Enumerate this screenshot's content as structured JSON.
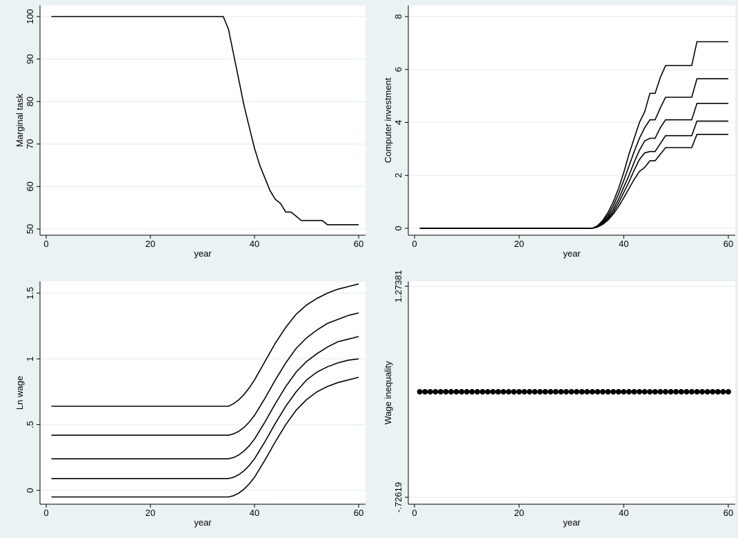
{
  "chart_data": [
    {
      "type": "line",
      "xlabel": "year",
      "ylabel": "Marginal task",
      "xlim": [
        0,
        60
      ],
      "ylim": [
        50,
        100
      ],
      "xticks": [
        0,
        20,
        40,
        60
      ],
      "yticks": [
        50,
        60,
        70,
        80,
        90,
        100
      ],
      "grid": true,
      "series": [
        {
          "x": [
            1,
            34,
            35,
            36,
            37,
            38,
            39,
            40,
            41,
            42,
            43,
            44,
            45,
            46,
            47,
            48,
            49,
            50,
            51,
            52,
            53,
            54,
            55,
            56,
            57,
            58,
            59,
            60
          ],
          "values": [
            100,
            100,
            97,
            91,
            85,
            79,
            74,
            69,
            65,
            62,
            59,
            57,
            56,
            54,
            54,
            53,
            52,
            52,
            52,
            52,
            52,
            51,
            51,
            51,
            51,
            51,
            51,
            51
          ]
        }
      ]
    },
    {
      "type": "line",
      "xlabel": "year",
      "ylabel": "Computer investment",
      "xlim": [
        0,
        60
      ],
      "ylim": [
        0,
        8
      ],
      "xticks": [
        0,
        20,
        40,
        60
      ],
      "yticks": [
        0,
        2,
        4,
        6,
        8
      ],
      "grid": true,
      "series": [
        {
          "x": [
            1,
            34,
            35,
            36,
            37,
            38,
            39,
            40,
            41,
            42,
            43,
            44,
            45,
            46,
            47,
            48,
            49,
            50,
            51,
            52,
            53,
            54,
            55,
            56,
            57,
            58,
            59,
            60
          ],
          "values": [
            0,
            0,
            0.1,
            0.3,
            0.6,
            1.0,
            1.5,
            2.1,
            2.8,
            3.4,
            4.0,
            4.4,
            5.1,
            5.1,
            5.7,
            6.15,
            6.15,
            6.15,
            6.15,
            6.15,
            6.15,
            7.05,
            7.05,
            7.05,
            7.05,
            7.05,
            7.05,
            7.05
          ]
        },
        {
          "x": [
            1,
            34,
            35,
            36,
            37,
            38,
            39,
            40,
            41,
            42,
            43,
            44,
            45,
            46,
            47,
            48,
            49,
            50,
            51,
            52,
            53,
            54,
            55,
            56,
            57,
            58,
            59,
            60
          ],
          "values": [
            0,
            0,
            0.08,
            0.25,
            0.5,
            0.85,
            1.3,
            1.8,
            2.35,
            2.9,
            3.4,
            3.8,
            4.1,
            4.1,
            4.55,
            4.95,
            4.95,
            4.95,
            4.95,
            4.95,
            4.95,
            5.65,
            5.65,
            5.65,
            5.65,
            5.65,
            5.65,
            5.65
          ]
        },
        {
          "x": [
            1,
            34,
            35,
            36,
            37,
            38,
            39,
            40,
            41,
            42,
            43,
            44,
            45,
            46,
            47,
            48,
            49,
            50,
            51,
            52,
            53,
            54,
            55,
            56,
            57,
            58,
            59,
            60
          ],
          "values": [
            0,
            0,
            0.07,
            0.2,
            0.42,
            0.72,
            1.1,
            1.55,
            2.0,
            2.5,
            2.95,
            3.3,
            3.4,
            3.4,
            3.8,
            4.1,
            4.1,
            4.1,
            4.1,
            4.1,
            4.1,
            4.72,
            4.72,
            4.72,
            4.72,
            4.72,
            4.72,
            4.72
          ]
        },
        {
          "x": [
            1,
            34,
            35,
            36,
            37,
            38,
            39,
            40,
            41,
            42,
            43,
            44,
            45,
            46,
            47,
            48,
            49,
            50,
            51,
            52,
            53,
            54,
            55,
            56,
            57,
            58,
            59,
            60
          ],
          "values": [
            0,
            0,
            0.06,
            0.18,
            0.36,
            0.62,
            0.95,
            1.35,
            1.75,
            2.2,
            2.6,
            2.85,
            2.9,
            2.9,
            3.2,
            3.5,
            3.5,
            3.5,
            3.5,
            3.5,
            3.5,
            4.05,
            4.05,
            4.05,
            4.05,
            4.05,
            4.05,
            4.05
          ]
        },
        {
          "x": [
            1,
            34,
            35,
            36,
            37,
            38,
            39,
            40,
            41,
            42,
            43,
            44,
            45,
            46,
            47,
            48,
            49,
            50,
            51,
            52,
            53,
            54,
            55,
            56,
            57,
            58,
            59,
            60
          ],
          "values": [
            0,
            0,
            0.05,
            0.15,
            0.31,
            0.54,
            0.82,
            1.15,
            1.5,
            1.85,
            2.15,
            2.3,
            2.55,
            2.55,
            2.8,
            3.05,
            3.05,
            3.05,
            3.05,
            3.05,
            3.05,
            3.55,
            3.55,
            3.55,
            3.55,
            3.55,
            3.55,
            3.55
          ]
        }
      ]
    },
    {
      "type": "line",
      "xlabel": "year",
      "ylabel": "Ln wage",
      "xlim": [
        0,
        60
      ],
      "ylim": [
        0,
        1.5
      ],
      "xticks": [
        0,
        20,
        40,
        60
      ],
      "yticks": [
        0,
        0.5,
        1,
        1.5
      ],
      "ytick_labels": [
        "0",
        ".5",
        "1",
        "1.5"
      ],
      "grid": true,
      "series": [
        {
          "x": [
            1,
            34,
            35,
            36,
            37,
            38,
            39,
            40,
            42,
            44,
            46,
            48,
            50,
            52,
            54,
            56,
            58,
            60
          ],
          "values": [
            0.64,
            0.64,
            0.64,
            0.66,
            0.69,
            0.73,
            0.78,
            0.84,
            0.98,
            1.12,
            1.24,
            1.34,
            1.41,
            1.46,
            1.5,
            1.53,
            1.55,
            1.57
          ]
        },
        {
          "x": [
            1,
            35,
            36,
            37,
            38,
            39,
            40,
            42,
            44,
            46,
            48,
            50,
            52,
            54,
            56,
            58,
            60
          ],
          "values": [
            0.42,
            0.42,
            0.43,
            0.45,
            0.48,
            0.52,
            0.57,
            0.7,
            0.84,
            0.97,
            1.08,
            1.16,
            1.22,
            1.27,
            1.3,
            1.33,
            1.35
          ]
        },
        {
          "x": [
            1,
            35,
            36,
            37,
            38,
            39,
            40,
            42,
            44,
            46,
            48,
            50,
            52,
            54,
            56,
            58,
            60
          ],
          "values": [
            0.24,
            0.24,
            0.25,
            0.27,
            0.3,
            0.34,
            0.39,
            0.52,
            0.66,
            0.79,
            0.9,
            0.98,
            1.04,
            1.09,
            1.13,
            1.15,
            1.17
          ]
        },
        {
          "x": [
            1,
            35,
            36,
            37,
            38,
            39,
            40,
            42,
            44,
            46,
            48,
            50,
            52,
            54,
            56,
            58,
            60
          ],
          "values": [
            0.09,
            0.09,
            0.1,
            0.12,
            0.15,
            0.19,
            0.24,
            0.37,
            0.51,
            0.64,
            0.75,
            0.84,
            0.9,
            0.94,
            0.97,
            0.99,
            1.0
          ]
        },
        {
          "x": [
            1,
            35,
            36,
            37,
            38,
            39,
            40,
            42,
            44,
            46,
            48,
            50,
            52,
            54,
            56,
            58,
            60
          ],
          "values": [
            -0.05,
            -0.05,
            -0.04,
            -0.02,
            0.01,
            0.05,
            0.1,
            0.23,
            0.37,
            0.5,
            0.61,
            0.69,
            0.75,
            0.79,
            0.82,
            0.84,
            0.86
          ]
        }
      ]
    },
    {
      "type": "scatter",
      "xlabel": "year",
      "ylabel": "Wage inequality",
      "xlim": [
        0,
        60
      ],
      "ylim": [
        -0.72619,
        1.27381
      ],
      "xticks": [
        0,
        20,
        40,
        60
      ],
      "yticks": [
        -0.72619,
        1.27381
      ],
      "ytick_labels": [
        "-.72619",
        "1.27381"
      ],
      "grid": true,
      "series": [
        {
          "x": [
            1,
            2,
            3,
            4,
            5,
            6,
            7,
            8,
            9,
            10,
            11,
            12,
            13,
            14,
            15,
            16,
            17,
            18,
            19,
            20,
            21,
            22,
            23,
            24,
            25,
            26,
            27,
            28,
            29,
            30,
            31,
            32,
            33,
            34,
            35,
            36,
            37,
            38,
            39,
            40,
            41,
            42,
            43,
            44,
            45,
            46,
            47,
            48,
            49,
            50,
            51,
            52,
            53,
            54,
            55,
            56,
            57,
            58,
            59,
            60
          ],
          "values": [
            0.27381,
            0.27381,
            0.27381,
            0.27381,
            0.27381,
            0.27381,
            0.27381,
            0.27381,
            0.27381,
            0.27381,
            0.27381,
            0.27381,
            0.27381,
            0.27381,
            0.27381,
            0.27381,
            0.27381,
            0.27381,
            0.27381,
            0.27381,
            0.27381,
            0.27381,
            0.27381,
            0.27381,
            0.27381,
            0.27381,
            0.27381,
            0.27381,
            0.27381,
            0.27381,
            0.27381,
            0.27381,
            0.27381,
            0.27381,
            0.27381,
            0.27381,
            0.27381,
            0.27381,
            0.27381,
            0.27381,
            0.27381,
            0.27381,
            0.27381,
            0.27381,
            0.27381,
            0.27381,
            0.27381,
            0.27381,
            0.27381,
            0.27381,
            0.27381,
            0.27381,
            0.27381,
            0.27381,
            0.27381,
            0.27381,
            0.27381,
            0.27381,
            0.27381,
            0.27381
          ]
        }
      ]
    }
  ]
}
